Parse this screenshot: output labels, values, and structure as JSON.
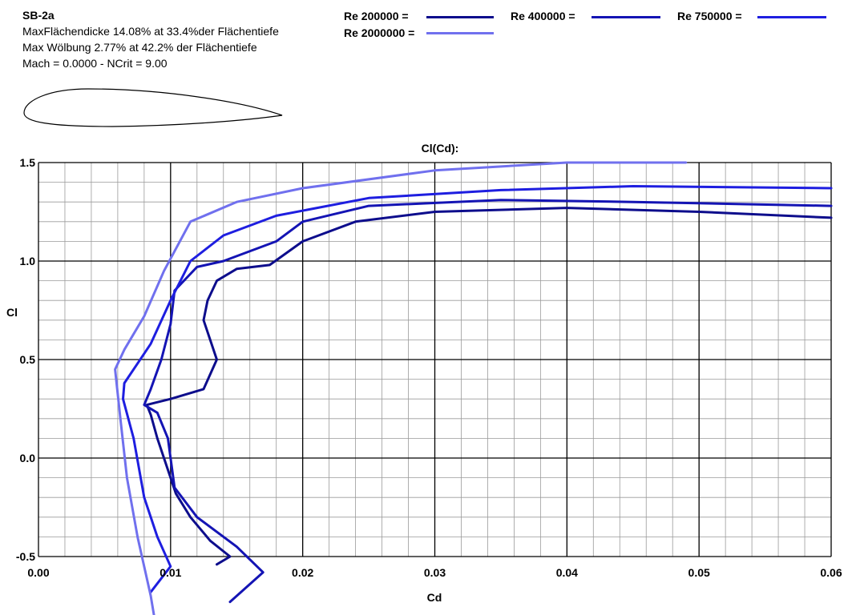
{
  "info": {
    "name": "SB-2a",
    "line1": "MaxFlächendicke 14.08% at 33.4%der Flächentiefe",
    "line2": "Max Wölbung 2.77% at 42.2% der Flächentiefe",
    "line3": "Mach = 0.0000 - NCrit = 9.00"
  },
  "legend": [
    {
      "label": "Re 200000 =",
      "color": "#0d0d8c"
    },
    {
      "label": "Re 400000 =",
      "color": "#1414b4"
    },
    {
      "label": "Re 750000 =",
      "color": "#1e1ee0"
    },
    {
      "label": "Re 2000000 =",
      "color": "#7070ee"
    }
  ],
  "chart_data": {
    "type": "line",
    "title": "Cl(Cd):",
    "xlabel": "Cd",
    "ylabel": "Cl",
    "xlim": [
      0.0,
      0.06
    ],
    "ylim": [
      -0.5,
      1.5
    ],
    "xticks": [
      "0.00",
      "0.01",
      "0.02",
      "0.03",
      "0.04",
      "0.05",
      "0.06"
    ],
    "yticks": [
      "-0.5",
      "0.0",
      "0.5",
      "1.0",
      "1.5"
    ],
    "grid": true,
    "series": [
      {
        "name": "Re 200000",
        "color": "#0d0d8c",
        "points": [
          [
            0.0135,
            -0.54
          ],
          [
            0.0145,
            -0.5
          ],
          [
            0.013,
            -0.42
          ],
          [
            0.0115,
            -0.3
          ],
          [
            0.0104,
            -0.18
          ],
          [
            0.0096,
            -0.02
          ],
          [
            0.009,
            0.1
          ],
          [
            0.0085,
            0.22
          ],
          [
            0.0082,
            0.27
          ],
          [
            0.0088,
            0.28
          ],
          [
            0.01,
            0.3
          ],
          [
            0.0125,
            0.35
          ],
          [
            0.0135,
            0.5
          ],
          [
            0.0125,
            0.7
          ],
          [
            0.0128,
            0.8
          ],
          [
            0.0135,
            0.9
          ],
          [
            0.015,
            0.96
          ],
          [
            0.0175,
            0.98
          ],
          [
            0.02,
            1.1
          ],
          [
            0.024,
            1.2
          ],
          [
            0.03,
            1.25
          ],
          [
            0.04,
            1.27
          ],
          [
            0.05,
            1.25
          ],
          [
            0.06,
            1.22
          ]
        ]
      },
      {
        "name": "Re 400000",
        "color": "#1414b4",
        "points": [
          [
            0.0145,
            -0.73
          ],
          [
            0.017,
            -0.58
          ],
          [
            0.015,
            -0.45
          ],
          [
            0.012,
            -0.3
          ],
          [
            0.0103,
            -0.15
          ],
          [
            0.0098,
            0.1
          ],
          [
            0.009,
            0.23
          ],
          [
            0.008,
            0.27
          ],
          [
            0.0085,
            0.35
          ],
          [
            0.0093,
            0.5
          ],
          [
            0.01,
            0.68
          ],
          [
            0.0103,
            0.85
          ],
          [
            0.012,
            0.97
          ],
          [
            0.014,
            1.0
          ],
          [
            0.018,
            1.1
          ],
          [
            0.02,
            1.2
          ],
          [
            0.025,
            1.28
          ],
          [
            0.035,
            1.31
          ],
          [
            0.045,
            1.3
          ],
          [
            0.06,
            1.28
          ]
        ]
      },
      {
        "name": "Re 750000 =",
        "color": "#1e1ee0",
        "points": [
          [
            0.0085,
            -0.68
          ],
          [
            0.01,
            -0.55
          ],
          [
            0.009,
            -0.4
          ],
          [
            0.008,
            -0.2
          ],
          [
            0.0072,
            0.1
          ],
          [
            0.0064,
            0.3
          ],
          [
            0.0065,
            0.38
          ],
          [
            0.0075,
            0.48
          ],
          [
            0.0085,
            0.58
          ],
          [
            0.01,
            0.8
          ],
          [
            0.0115,
            1.0
          ],
          [
            0.014,
            1.13
          ],
          [
            0.018,
            1.23
          ],
          [
            0.025,
            1.32
          ],
          [
            0.035,
            1.36
          ],
          [
            0.045,
            1.38
          ],
          [
            0.06,
            1.37
          ]
        ]
      },
      {
        "name": "Re 2000000 =",
        "color": "#7070ee",
        "points": [
          [
            0.009,
            -0.9
          ],
          [
            0.0085,
            -0.7
          ],
          [
            0.0075,
            -0.4
          ],
          [
            0.0067,
            -0.1
          ],
          [
            0.0062,
            0.2
          ],
          [
            0.0058,
            0.45
          ],
          [
            0.0065,
            0.55
          ],
          [
            0.008,
            0.72
          ],
          [
            0.0095,
            0.95
          ],
          [
            0.0115,
            1.2
          ],
          [
            0.015,
            1.3
          ],
          [
            0.02,
            1.37
          ],
          [
            0.03,
            1.46
          ],
          [
            0.04,
            1.5
          ],
          [
            0.049,
            1.5
          ]
        ]
      }
    ]
  }
}
